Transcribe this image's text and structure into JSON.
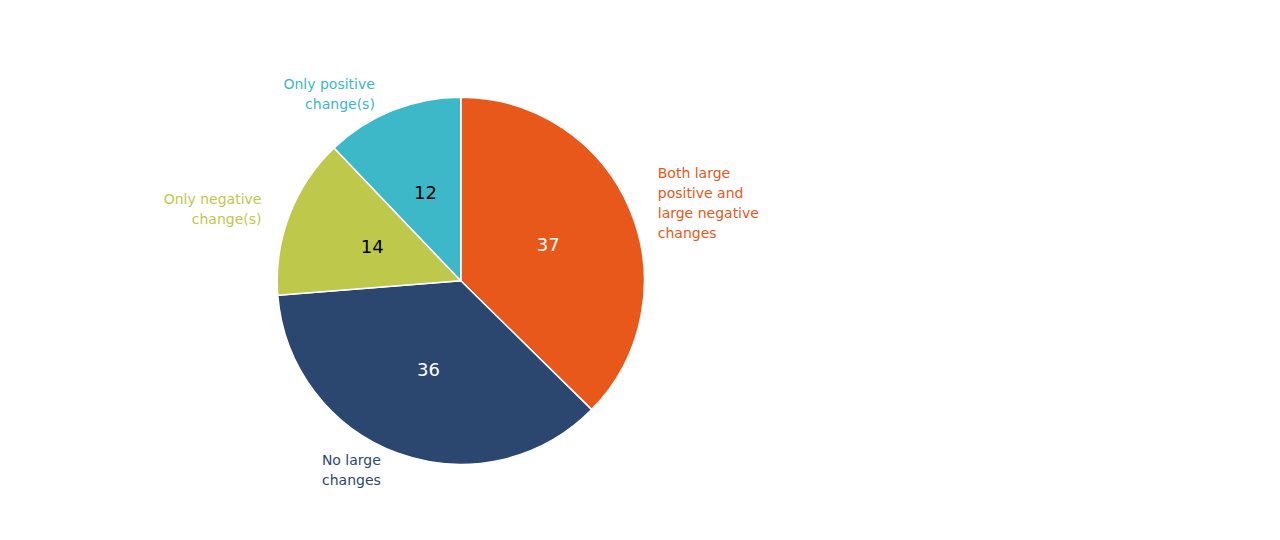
{
  "chart_data": {
    "type": "pie",
    "categories": [
      "Both large\npositive and\nlarge negative\nchanges",
      "No large\nchanges",
      "Only negative\nchange(s)",
      "Only positive\nchange(s)"
    ],
    "values": [
      37,
      36,
      14,
      12
    ],
    "colors": [
      "#E8581A",
      "#2B4770",
      "#BEC84A",
      "#3CB8C8"
    ],
    "data_labels": true
  }
}
